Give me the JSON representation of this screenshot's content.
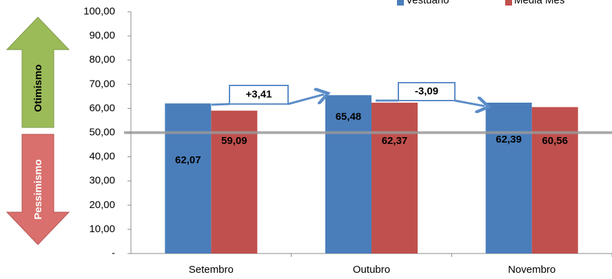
{
  "chart_data": {
    "type": "bar",
    "categories": [
      "Setembro",
      "Outubro",
      "Novembro"
    ],
    "series": [
      {
        "name": "Vestuario",
        "color": "#4a7ebb",
        "values": [
          62.07,
          65.48,
          62.39
        ],
        "value_labels": [
          "62,07",
          "65,48",
          "62,39"
        ]
      },
      {
        "name": "Media Mes",
        "color": "#c0504d",
        "values": [
          59.09,
          62.37,
          60.56
        ],
        "value_labels": [
          "59,09",
          "62,37",
          "60,56"
        ]
      }
    ],
    "ylim": [
      0,
      100
    ],
    "yticks": [
      {
        "value": 0,
        "label": "-"
      },
      {
        "value": 10,
        "label": "10,00"
      },
      {
        "value": 20,
        "label": "20,00"
      },
      {
        "value": 30,
        "label": "30,00"
      },
      {
        "value": 40,
        "label": "40,00"
      },
      {
        "value": 50,
        "label": "50,00"
      },
      {
        "value": 60,
        "label": "60,00"
      },
      {
        "value": 70,
        "label": "70,00"
      },
      {
        "value": 80,
        "label": "80,00"
      },
      {
        "value": 90,
        "label": "90,00"
      },
      {
        "value": 100,
        "label": "100,00"
      }
    ],
    "reference_line": 50,
    "annotations": [
      "+3,41",
      "-3,09"
    ],
    "side_labels": [
      "Otimismo",
      "Pessimismo"
    ],
    "legend": "top-right"
  }
}
